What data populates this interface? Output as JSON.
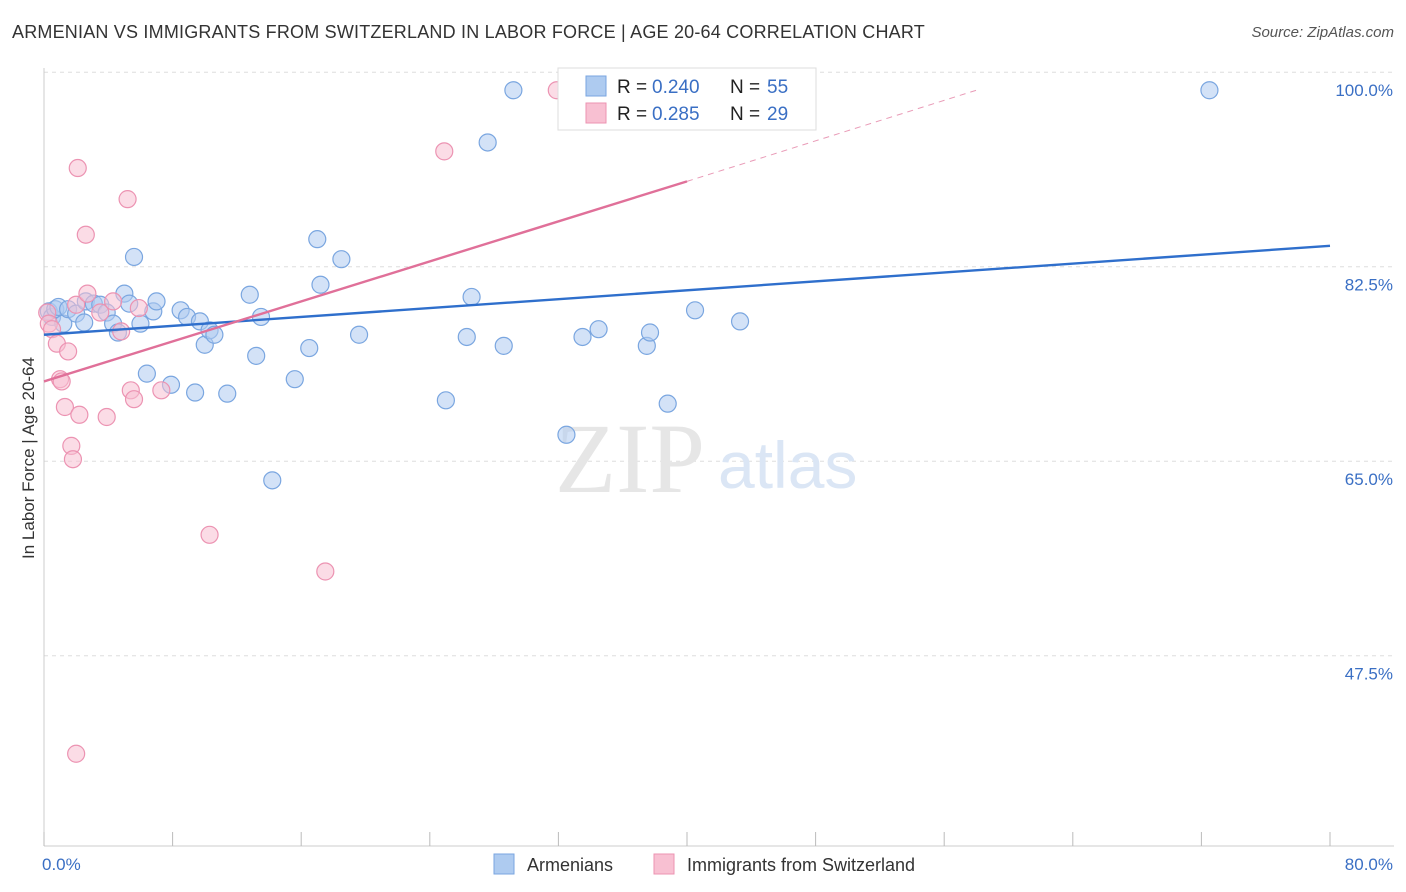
{
  "title": "ARMENIAN VS IMMIGRANTS FROM SWITZERLAND IN LABOR FORCE | AGE 20-64 CORRELATION CHART",
  "source": "Source: ZipAtlas.com",
  "watermark": {
    "zip": "ZIP",
    "atlas": "atlas"
  },
  "colors": {
    "blue_fill": "#aecbf0",
    "blue_stroke": "#7aa6e0",
    "blue_line": "#2f6fcc",
    "pink_fill": "#f8c0d2",
    "pink_stroke": "#ec93b2",
    "pink_line": "#e07099",
    "tick_text": "#3a6fc4",
    "grid": "#dddddd"
  },
  "chart_data": {
    "type": "scatter",
    "xlabel": "",
    "ylabel": "In Labor Force | Age 20-64",
    "xlim": [
      0,
      80
    ],
    "ylim": [
      32,
      102
    ],
    "x_tick_labels": [
      "0.0%",
      "80.0%"
    ],
    "y_ticks": [
      47.5,
      65.0,
      82.5,
      100.0
    ],
    "y_tick_labels": [
      "47.5%",
      "65.0%",
      "82.5%",
      "100.0%"
    ],
    "grid": "horizontal dashed",
    "legend": {
      "placement": "top-center",
      "entries": [
        {
          "r_label": "R =",
          "r_value": "0.240",
          "n_label": "N =",
          "n_value": "55"
        },
        {
          "r_label": "R =",
          "r_value": "0.285",
          "n_label": "N =",
          "n_value": "29"
        }
      ]
    },
    "series": [
      {
        "name": "Armenians",
        "color": "#aecbf0",
        "points": [
          [
            0.3,
            80.1
          ],
          [
            0.5,
            79.6
          ],
          [
            0.7,
            80.3
          ],
          [
            0.9,
            80.5
          ],
          [
            1.2,
            79.0
          ],
          [
            1.5,
            80.3
          ],
          [
            2.0,
            79.9
          ],
          [
            2.5,
            79.1
          ],
          [
            2.6,
            81.0
          ],
          [
            3.1,
            80.8
          ],
          [
            3.5,
            80.7
          ],
          [
            3.9,
            80.0
          ],
          [
            4.3,
            79.0
          ],
          [
            4.6,
            78.2
          ],
          [
            5.0,
            81.7
          ],
          [
            5.3,
            80.8
          ],
          [
            5.6,
            85.0
          ],
          [
            6.0,
            79.0
          ],
          [
            6.4,
            74.5
          ],
          [
            6.8,
            80.1
          ],
          [
            7.0,
            81.0
          ],
          [
            7.9,
            73.5
          ],
          [
            8.5,
            80.2
          ],
          [
            8.9,
            79.6
          ],
          [
            9.4,
            72.8
          ],
          [
            9.7,
            79.2
          ],
          [
            10.0,
            77.1
          ],
          [
            10.3,
            78.4
          ],
          [
            10.6,
            78.0
          ],
          [
            11.4,
            72.7
          ],
          [
            12.8,
            81.6
          ],
          [
            13.2,
            76.1
          ],
          [
            13.5,
            79.6
          ],
          [
            14.2,
            64.9
          ],
          [
            15.6,
            74.0
          ],
          [
            16.5,
            76.8
          ],
          [
            17.0,
            86.6
          ],
          [
            17.2,
            82.5
          ],
          [
            18.5,
            84.8
          ],
          [
            19.6,
            78.0
          ],
          [
            25.0,
            72.1
          ],
          [
            26.3,
            77.8
          ],
          [
            26.6,
            81.4
          ],
          [
            27.6,
            95.3
          ],
          [
            28.6,
            77.0
          ],
          [
            29.2,
            100.0
          ],
          [
            32.5,
            69.0
          ],
          [
            33.5,
            77.8
          ],
          [
            34.5,
            78.5
          ],
          [
            37.5,
            77.0
          ],
          [
            37.7,
            78.2
          ],
          [
            38.8,
            71.8
          ],
          [
            40.5,
            80.2
          ],
          [
            43.3,
            79.2
          ],
          [
            72.5,
            100.0
          ]
        ]
      },
      {
        "name": "Immigrants from Switzerland",
        "color": "#f8c0d2",
        "points": [
          [
            0.2,
            80.0
          ],
          [
            0.3,
            79.0
          ],
          [
            0.5,
            78.5
          ],
          [
            0.8,
            77.2
          ],
          [
            1.0,
            74.0
          ],
          [
            1.1,
            73.8
          ],
          [
            1.3,
            71.5
          ],
          [
            1.5,
            76.5
          ],
          [
            1.7,
            68.0
          ],
          [
            1.8,
            66.8
          ],
          [
            2.0,
            80.7
          ],
          [
            2.1,
            93.0
          ],
          [
            2.2,
            70.8
          ],
          [
            2.6,
            87.0
          ],
          [
            2.7,
            81.7
          ],
          [
            3.5,
            80.0
          ],
          [
            3.9,
            70.6
          ],
          [
            4.3,
            81.0
          ],
          [
            4.8,
            78.3
          ],
          [
            5.2,
            90.2
          ],
          [
            5.4,
            73.0
          ],
          [
            5.6,
            72.2
          ],
          [
            5.9,
            80.4
          ],
          [
            7.3,
            73.0
          ],
          [
            10.3,
            60.0
          ],
          [
            17.5,
            56.7
          ],
          [
            24.9,
            94.5
          ],
          [
            31.9,
            100.0
          ],
          [
            2.0,
            40.3
          ]
        ]
      }
    ],
    "trend_lines": [
      {
        "series": "Armenians",
        "x": [
          0,
          80
        ],
        "y": [
          78.0,
          86.0
        ],
        "style": "solid"
      },
      {
        "series": "Immigrants from Switzerland",
        "x": [
          0,
          40
        ],
        "y": [
          73.8,
          91.8
        ],
        "style": "solid"
      },
      {
        "series": "Immigrants from Switzerland",
        "x": [
          40,
          58
        ],
        "y": [
          91.8,
          100.0
        ],
        "style": "dashed"
      }
    ]
  },
  "bottom_legend": [
    {
      "label": "Armenians"
    },
    {
      "label": "Immigrants from Switzerland"
    }
  ]
}
